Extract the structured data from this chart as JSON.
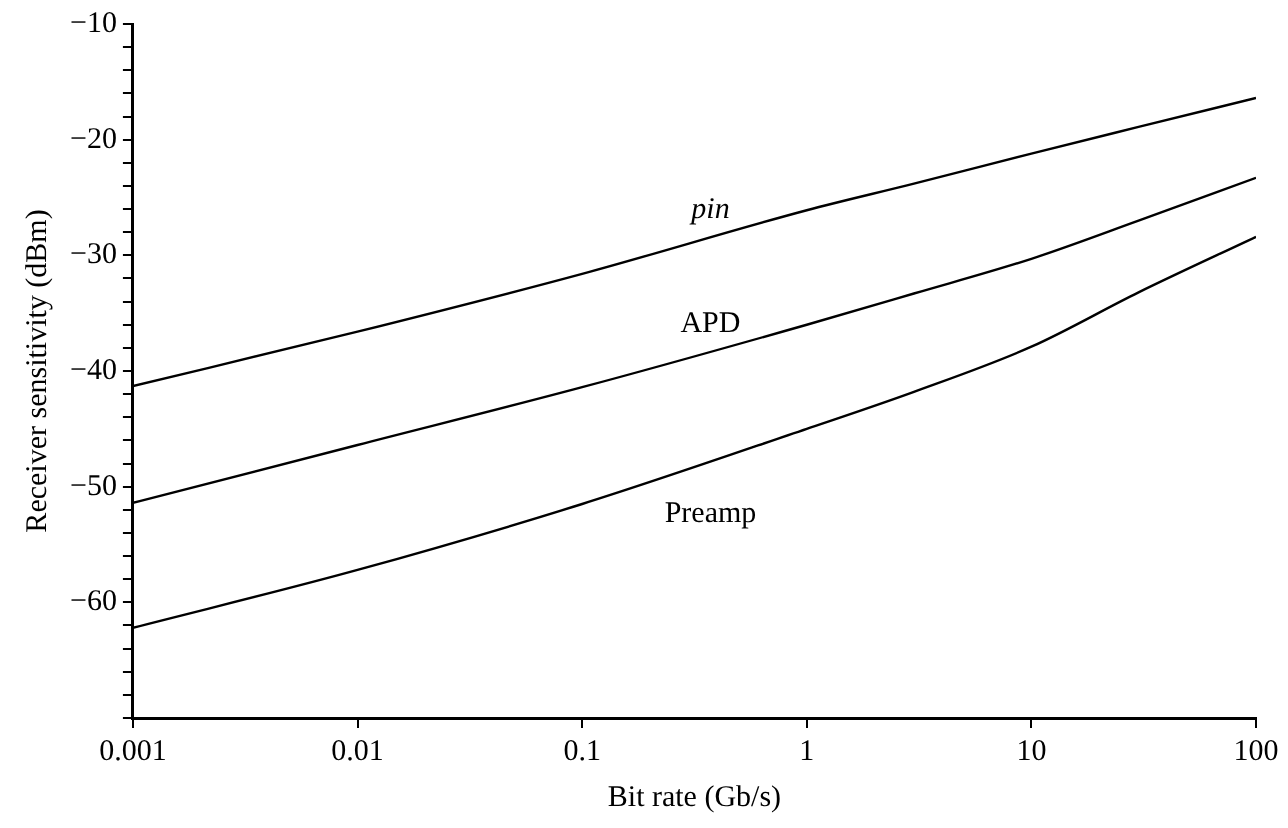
{
  "chart_data": {
    "type": "line",
    "xlabel": "Bit rate (Gb/s)",
    "ylabel": "Receiver sensitivity (dBm)",
    "log": "x",
    "x": [
      0.001,
      0.01,
      0.1,
      1,
      3,
      10,
      30,
      100
    ],
    "series": [
      {
        "name": "pin",
        "color": "#000000",
        "values": [
          -41.3,
          -36.6,
          -31.6,
          -26.1,
          -23.8,
          -21.2,
          -18.9,
          -16.4
        ]
      },
      {
        "name": "APD",
        "color": "#000000",
        "values": [
          -51.4,
          -46.4,
          -41.4,
          -36.0,
          -33.3,
          -30.3,
          -27.0,
          -23.3
        ]
      },
      {
        "name": "Preamp",
        "color": "#000000",
        "values": [
          -62.2,
          -57.2,
          -51.5,
          -45.0,
          -41.8,
          -37.9,
          -33.2,
          -28.4
        ]
      }
    ],
    "xlim": [
      0.001,
      100
    ],
    "xticks": [
      0.001,
      0.01,
      0.1,
      1,
      10,
      100
    ],
    "ylim": [
      -70,
      -10
    ],
    "yticks": [
      {
        "value": -70,
        "label": null
      },
      {
        "value": -68,
        "label": null
      },
      {
        "value": -66,
        "label": null
      },
      {
        "value": -64,
        "label": null
      },
      {
        "value": -62,
        "label": null
      },
      -60,
      {
        "value": -58,
        "label": null
      },
      {
        "value": -56,
        "label": null
      },
      {
        "value": -54,
        "label": null
      },
      {
        "value": -52,
        "label": null
      },
      -50,
      {
        "value": -48,
        "label": null
      },
      {
        "value": -46,
        "label": null
      },
      {
        "value": -44,
        "label": null
      },
      {
        "value": -42,
        "label": null
      },
      -40,
      {
        "value": -38,
        "label": null
      },
      {
        "value": -36,
        "label": null
      },
      {
        "value": -34,
        "label": null
      },
      {
        "value": -32,
        "label": null
      },
      -30,
      {
        "value": -28,
        "label": null
      },
      {
        "value": -26,
        "label": null
      },
      {
        "value": -24,
        "label": null
      },
      {
        "value": -22,
        "label": null
      },
      -20,
      {
        "value": -18,
        "label": null
      },
      {
        "value": -16,
        "label": null
      },
      {
        "value": -14,
        "label": null
      },
      {
        "value": -12,
        "label": null
      },
      -10
    ],
    "grid": false,
    "legend": false,
    "marker": "none",
    "line_style": "solid"
  }
}
